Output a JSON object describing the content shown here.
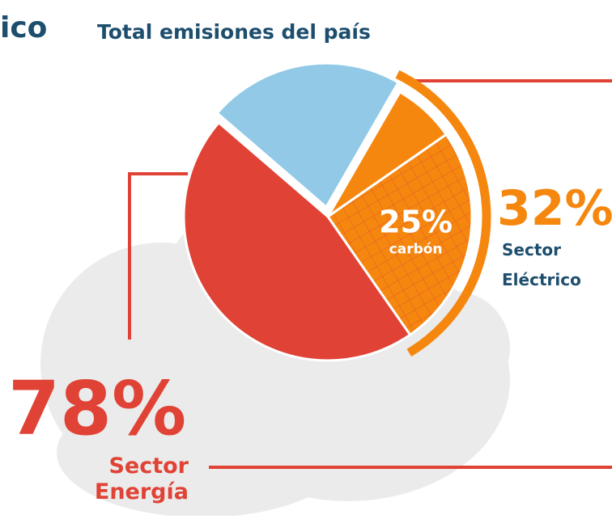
{
  "header_fragment": "ico",
  "chart_data": {
    "type": "pie",
    "title": "Total emisiones del país",
    "categories": [
      null,
      "carbón",
      null,
      null
    ],
    "values": [
      7,
      25,
      46,
      22
    ],
    "value_labels": [
      null,
      "25%",
      null,
      null
    ],
    "colors": [
      "#f5870f",
      "#f5870f",
      "#e04335",
      "#92c9e6"
    ],
    "hatched": [
      false,
      true,
      false,
      false
    ],
    "start_angle": 30,
    "annotations": [
      {
        "value": 32,
        "label": "32%",
        "lines": [
          "Sector",
          "Eléctrico"
        ],
        "color": "#f5870f"
      },
      {
        "value": 78,
        "label": "78%",
        "lines": [
          "Sector",
          "Energía"
        ],
        "color": "#e04335"
      }
    ]
  }
}
